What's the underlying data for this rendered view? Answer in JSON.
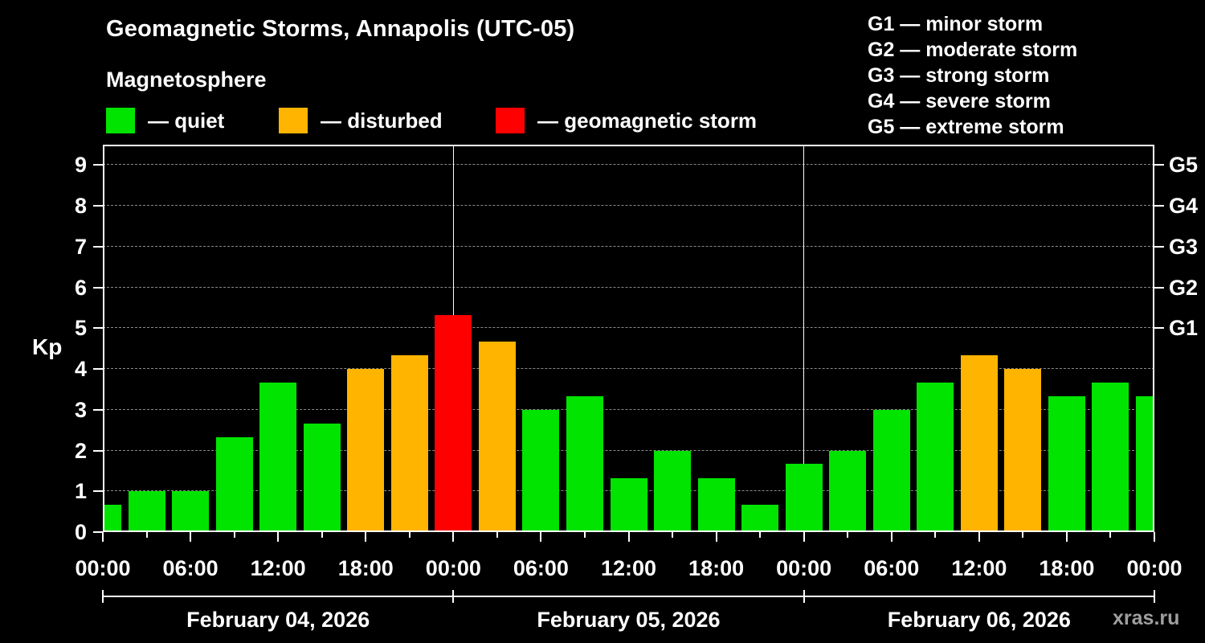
{
  "title": "Geomagnetic Storms, Annapolis (UTC-05)",
  "subtitle": "Magnetosphere",
  "ylabel": "Kp",
  "watermark": "xras.ru",
  "legend": {
    "quiet": "— quiet",
    "disturbed": "— disturbed",
    "storm": "— geomagnetic storm"
  },
  "g_legend": [
    "G1 — minor storm",
    "G2 — moderate storm",
    "G3 — strong storm",
    "G4 — severe storm",
    "G5 — extreme storm"
  ],
  "colors": {
    "quiet": "#00e400",
    "disturbed": "#ffb400",
    "storm": "#ff0000",
    "axis": "#ffffff",
    "grid": "#8a8a8a",
    "background": "#000000",
    "watermark": "#9f9f9f"
  },
  "chart_data": {
    "type": "bar",
    "title": "Geomagnetic Storms, Annapolis (UTC-05)",
    "subtitle": "Magnetosphere",
    "xlabel": "",
    "ylabel": "Kp",
    "ylim": [
      0,
      9.5
    ],
    "grid": "dashed horizontal at integer Kp",
    "legend_position": "top",
    "x_start_hour": 0,
    "x_step_hours": 3,
    "values": [
      0.67,
      1.0,
      1.0,
      2.33,
      3.67,
      2.67,
      4.0,
      4.33,
      5.33,
      4.67,
      3.0,
      3.33,
      1.33,
      2.0,
      1.33,
      0.67,
      1.67,
      2.0,
      3.0,
      3.67,
      4.33,
      4.0,
      3.33,
      3.67,
      3.33
    ],
    "thresholds": {
      "disturbed": 4,
      "storm": 5
    },
    "yticks": [
      0,
      1,
      2,
      3,
      4,
      5,
      6,
      7,
      8,
      9
    ],
    "right_ticks": [
      {
        "kp": 5,
        "label": "G1"
      },
      {
        "kp": 6,
        "label": "G2"
      },
      {
        "kp": 7,
        "label": "G3"
      },
      {
        "kp": 8,
        "label": "G4"
      },
      {
        "kp": 9,
        "label": "G5"
      }
    ],
    "x_tick_labels": [
      "00:00",
      "06:00",
      "12:00",
      "18:00",
      "00:00",
      "06:00",
      "12:00",
      "18:00",
      "00:00",
      "06:00",
      "12:00",
      "18:00",
      "00:00"
    ],
    "day_labels": [
      "February 04, 2026",
      "February 05, 2026",
      "February 06, 2026"
    ]
  }
}
